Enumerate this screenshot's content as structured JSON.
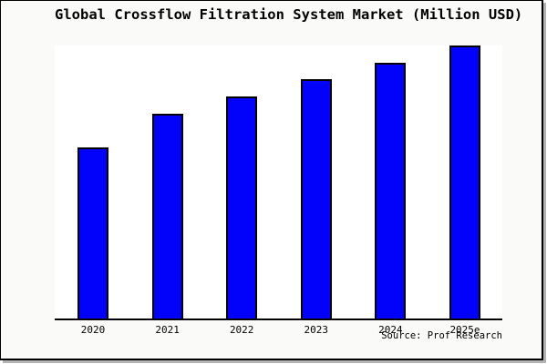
{
  "frame": {
    "background": "#fafaf9",
    "border_color": "#000000",
    "shadow_color": "#b3b3b3"
  },
  "chart_data": {
    "type": "bar",
    "title": "Global Crossflow Filtration System Market (Million USD)",
    "categories": [
      "2020",
      "2021",
      "2022",
      "2023",
      "2024",
      "2025e"
    ],
    "values": [
      62.8,
      75.1,
      81.4,
      87.7,
      93.7,
      100
    ],
    "value_note": "no y-axis ticks shown; values are relative bar heights with 2025e = 100",
    "xlabel": "",
    "ylabel": "",
    "ylim": [
      0,
      100
    ],
    "grid": false,
    "legend": null,
    "bar_color": "#0202fb",
    "bar_border_color": "#000000",
    "plot_background": "#ffffff",
    "source": "Source: Prof Research"
  }
}
